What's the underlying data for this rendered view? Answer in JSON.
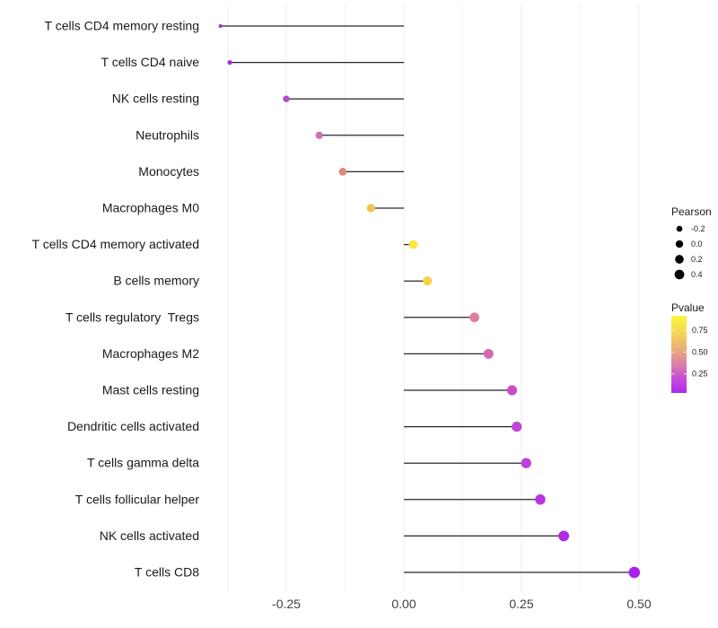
{
  "chart_data": {
    "type": "scatter",
    "style": "lollipop",
    "title": "",
    "xlabel": "",
    "ylabel": "",
    "grid": "vertical-only",
    "background": "#ffffff",
    "gridline_color": "#ececec",
    "stem_color": "#262626",
    "xlim": [
      -0.435,
      0.535
    ],
    "x_ticks": [
      -0.25,
      0.0,
      0.25,
      0.5
    ],
    "x_tick_labels": [
      "-0.25",
      "0.00",
      "0.25",
      "0.50"
    ],
    "x_minor_ticks": [
      -0.375,
      -0.125,
      0.125,
      0.375
    ],
    "rows": [
      {
        "label": "T cells CD4 memory resting",
        "pearson": -0.39,
        "pvalue": 0.05,
        "color": "#A42AE4"
      },
      {
        "label": "T cells CD4 naive",
        "pearson": -0.37,
        "pvalue": 0.07,
        "color": "#A82BE0"
      },
      {
        "label": "NK cells resting",
        "pearson": -0.25,
        "pvalue": 0.2,
        "color": "#B44CCB"
      },
      {
        "label": "Neutrophils",
        "pearson": -0.18,
        "pvalue": 0.35,
        "color": "#CB72B3"
      },
      {
        "label": "Monocytes",
        "pearson": -0.13,
        "pvalue": 0.55,
        "color": "#E08A7B"
      },
      {
        "label": "Macrophages M0",
        "pearson": -0.07,
        "pvalue": 0.75,
        "color": "#F0C64A"
      },
      {
        "label": "T cells CD4 memory activated",
        "pearson": 0.02,
        "pvalue": 0.9,
        "color": "#FAE93C"
      },
      {
        "label": "B cells memory",
        "pearson": 0.05,
        "pvalue": 0.8,
        "color": "#F4D348"
      },
      {
        "label": "T cells regulatory  Tregs",
        "pearson": 0.15,
        "pvalue": 0.45,
        "color": "#DE7F9E"
      },
      {
        "label": "Macrophages M2",
        "pearson": 0.18,
        "pvalue": 0.36,
        "color": "#D667AF"
      },
      {
        "label": "Mast cells resting",
        "pearson": 0.23,
        "pvalue": 0.25,
        "color": "#C94DC9"
      },
      {
        "label": "Dendritic cells activated",
        "pearson": 0.24,
        "pvalue": 0.22,
        "color": "#C246D3"
      },
      {
        "label": "T cells gamma delta",
        "pearson": 0.26,
        "pvalue": 0.2,
        "color": "#BE40D8"
      },
      {
        "label": "T cells follicular helper",
        "pearson": 0.29,
        "pvalue": 0.15,
        "color": "#B835DF"
      },
      {
        "label": "NK cells activated",
        "pearson": 0.34,
        "pvalue": 0.1,
        "color": "#B12AE6"
      },
      {
        "label": "T cells CD8",
        "pearson": 0.49,
        "pvalue": 0.03,
        "color": "#A722EF"
      }
    ],
    "legend_size": {
      "title": "Pearson",
      "dot_color": "#000000",
      "items": [
        {
          "label": "-0.2",
          "value": -0.2
        },
        {
          "label": "0.0",
          "value": 0.0
        },
        {
          "label": "0.2",
          "value": 0.2
        },
        {
          "label": "0.4",
          "value": 0.4
        }
      ]
    },
    "legend_color": {
      "title": "Pvalue",
      "tick_labels": [
        "0.75",
        "0.50",
        "0.25"
      ],
      "tick_values": [
        0.75,
        0.5,
        0.25
      ],
      "bar_range": [
        0.031,
        0.917
      ],
      "gradient": [
        {
          "offset": 0.0,
          "color": "#FCF53F"
        },
        {
          "offset": 0.2,
          "color": "#F6DA52"
        },
        {
          "offset": 0.45,
          "color": "#E9A87E"
        },
        {
          "offset": 0.65,
          "color": "#DA79AE"
        },
        {
          "offset": 0.8,
          "color": "#C94FD6"
        },
        {
          "offset": 1.0,
          "color": "#AE29F0"
        }
      ]
    }
  }
}
